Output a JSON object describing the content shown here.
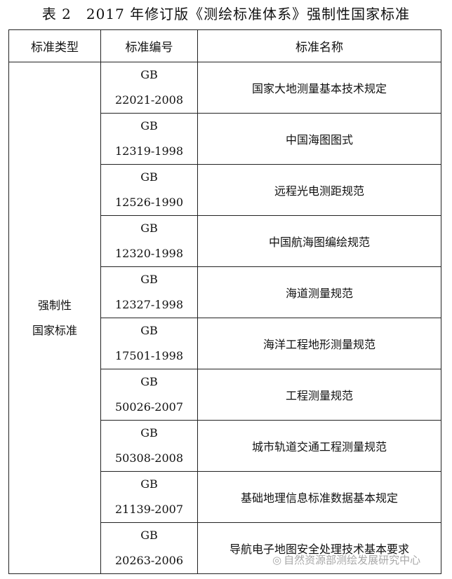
{
  "title": "表 2　2017 年修订版《测绘标准体系》强制性国家标准",
  "headers": [
    "标准类型",
    "标准编号",
    "标准名称"
  ],
  "type_line1": "强制性",
  "type_line2": "国家标准",
  "rows": [
    {
      "prefix": "GB",
      "num": "22021-2008",
      "name": "国家大地测量基本技术规定"
    },
    {
      "prefix": "GB",
      "num": "12319-1998",
      "name": "中国海图图式"
    },
    {
      "prefix": "GB",
      "num": "12526-1990",
      "name": "远程光电测距规范"
    },
    {
      "prefix": "GB",
      "num": "12320-1998",
      "name": "中国航海图编绘规范"
    },
    {
      "prefix": "GB",
      "num": "12327-1998",
      "name": "海道测量规范"
    },
    {
      "prefix": "GB",
      "num": "17501-1998",
      "name": "海洋工程地形测量规范"
    },
    {
      "prefix": "GB",
      "num": "50026-2007",
      "name": "工程测量规范"
    },
    {
      "prefix": "GB",
      "num": "50308-2008",
      "name": "城市轨道交通工程测量规范"
    },
    {
      "prefix": "GB",
      "num": "21139-2007",
      "name": "基础地理信息标准数据基本规定"
    },
    {
      "prefix": "GB",
      "num": "20263-2006",
      "name": "导航电子地图安全处理技术基本要求"
    }
  ],
  "watermark": {
    "icon": "wechat-icon",
    "text": "自然资源部测绘发展研究中心"
  }
}
